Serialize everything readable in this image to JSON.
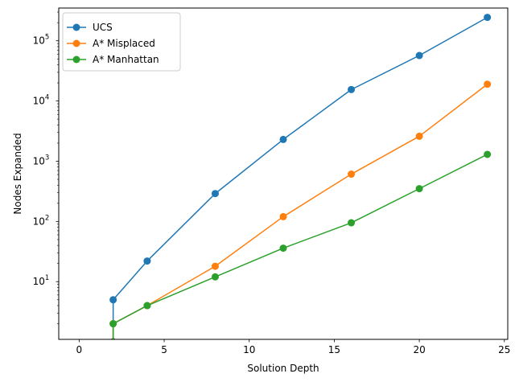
{
  "chart_data": {
    "type": "line",
    "title": "",
    "xlabel": "Solution Depth",
    "ylabel": "Nodes Expanded",
    "xlim": [
      -1.2,
      25.2
    ],
    "ylim": [
      1.1,
      350000
    ],
    "yscale": "log",
    "xticks": [
      0,
      5,
      10,
      15,
      20,
      25
    ],
    "yticks": [
      {
        "value": 10,
        "base": "10",
        "exp": "1"
      },
      {
        "value": 100,
        "base": "10",
        "exp": "2"
      },
      {
        "value": 1000,
        "base": "10",
        "exp": "3"
      },
      {
        "value": 10000,
        "base": "10",
        "exp": "4"
      },
      {
        "value": 100000,
        "base": "10",
        "exp": "5"
      }
    ],
    "grid": false,
    "legend_position": "top-left",
    "x": [
      2,
      2,
      4,
      8,
      12,
      16,
      20,
      24
    ],
    "series": [
      {
        "name": "UCS",
        "color": "#1f77b4",
        "values": [
          1,
          5,
          22,
          290,
          2300,
          15500,
          57000,
          245000
        ]
      },
      {
        "name": "A* Misplaced",
        "color": "#ff7f0e",
        "values": [
          1,
          2,
          4,
          18,
          120,
          610,
          2600,
          19000
        ]
      },
      {
        "name": "A* Manhattan",
        "color": "#2ca02c",
        "values": [
          1,
          2,
          4,
          12,
          36,
          95,
          350,
          1300
        ]
      }
    ]
  }
}
